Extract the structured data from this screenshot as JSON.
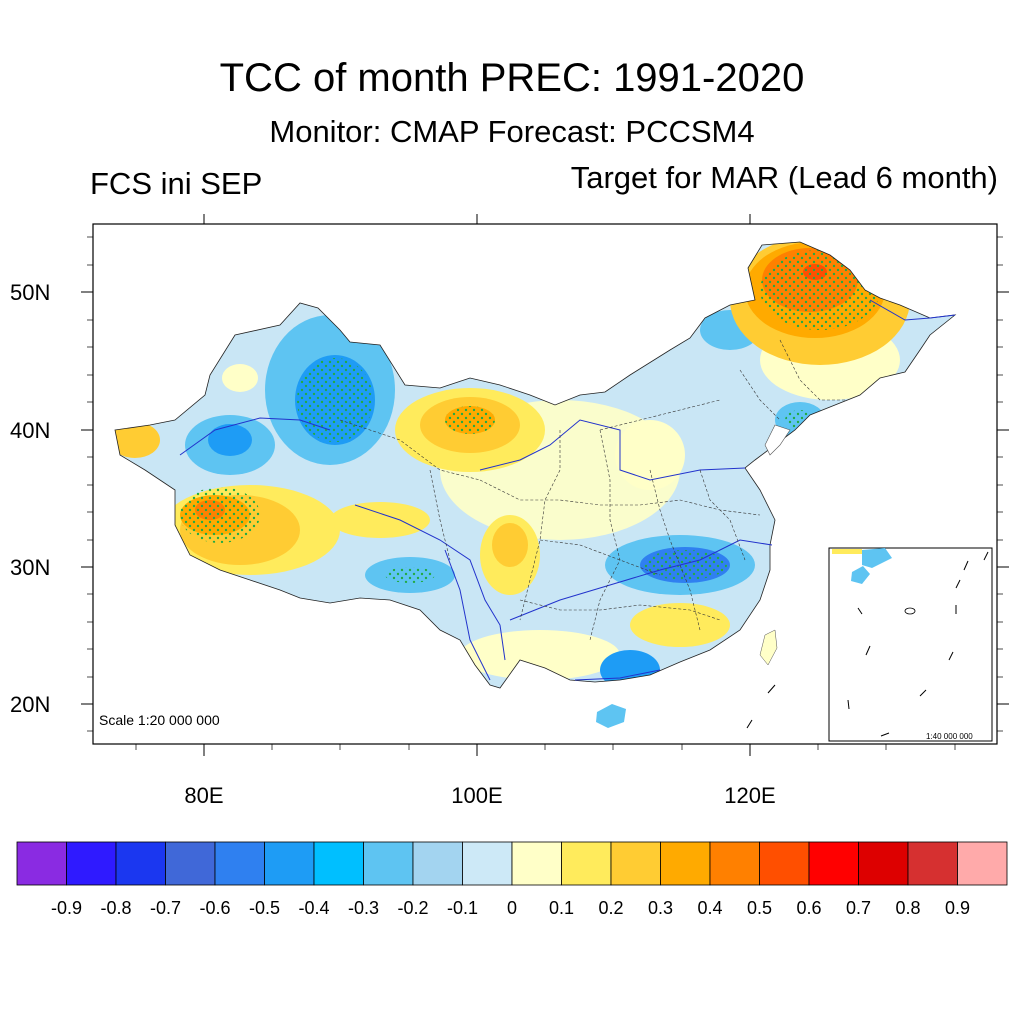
{
  "title": "TCC of month PREC: 1991-2020",
  "subtitle": "Monitor: CMAP   Forecast: PCCSM4",
  "left_subtitle": "FCS ini SEP",
  "right_subtitle": "Target for MAR (Lead 6 month)",
  "map": {
    "lat_ticks": [
      "50N",
      "40N",
      "30N",
      "20N"
    ],
    "lon_ticks": [
      "80E",
      "100E",
      "120E"
    ],
    "scale_label": "Scale 1:20 000 000",
    "inset_scale_label": "1:40 000 000",
    "land_background": "#c9e6f5",
    "stipple_color": "#22aa44"
  },
  "colorbar": {
    "colors": [
      "#8a2be2",
      "#2f1aff",
      "#1b37f0",
      "#4068d8",
      "#2f80f0",
      "#1e9cf5",
      "#00bfff",
      "#5ec4f2",
      "#a3d4f0",
      "#cde9f7",
      "#ffffc8",
      "#ffeb5c",
      "#ffcc33",
      "#ffaa00",
      "#ff8000",
      "#ff4f00",
      "#ff0000",
      "#dd0000",
      "#d63030",
      "#ffaaaa"
    ],
    "labels": [
      "-0.9",
      "-0.8",
      "-0.7",
      "-0.6",
      "-0.5",
      "-0.4",
      "-0.3",
      "-0.2",
      "-0.1",
      "0",
      "0.1",
      "0.2",
      "0.3",
      "0.4",
      "0.5",
      "0.6",
      "0.7",
      "0.8",
      "0.9"
    ]
  }
}
